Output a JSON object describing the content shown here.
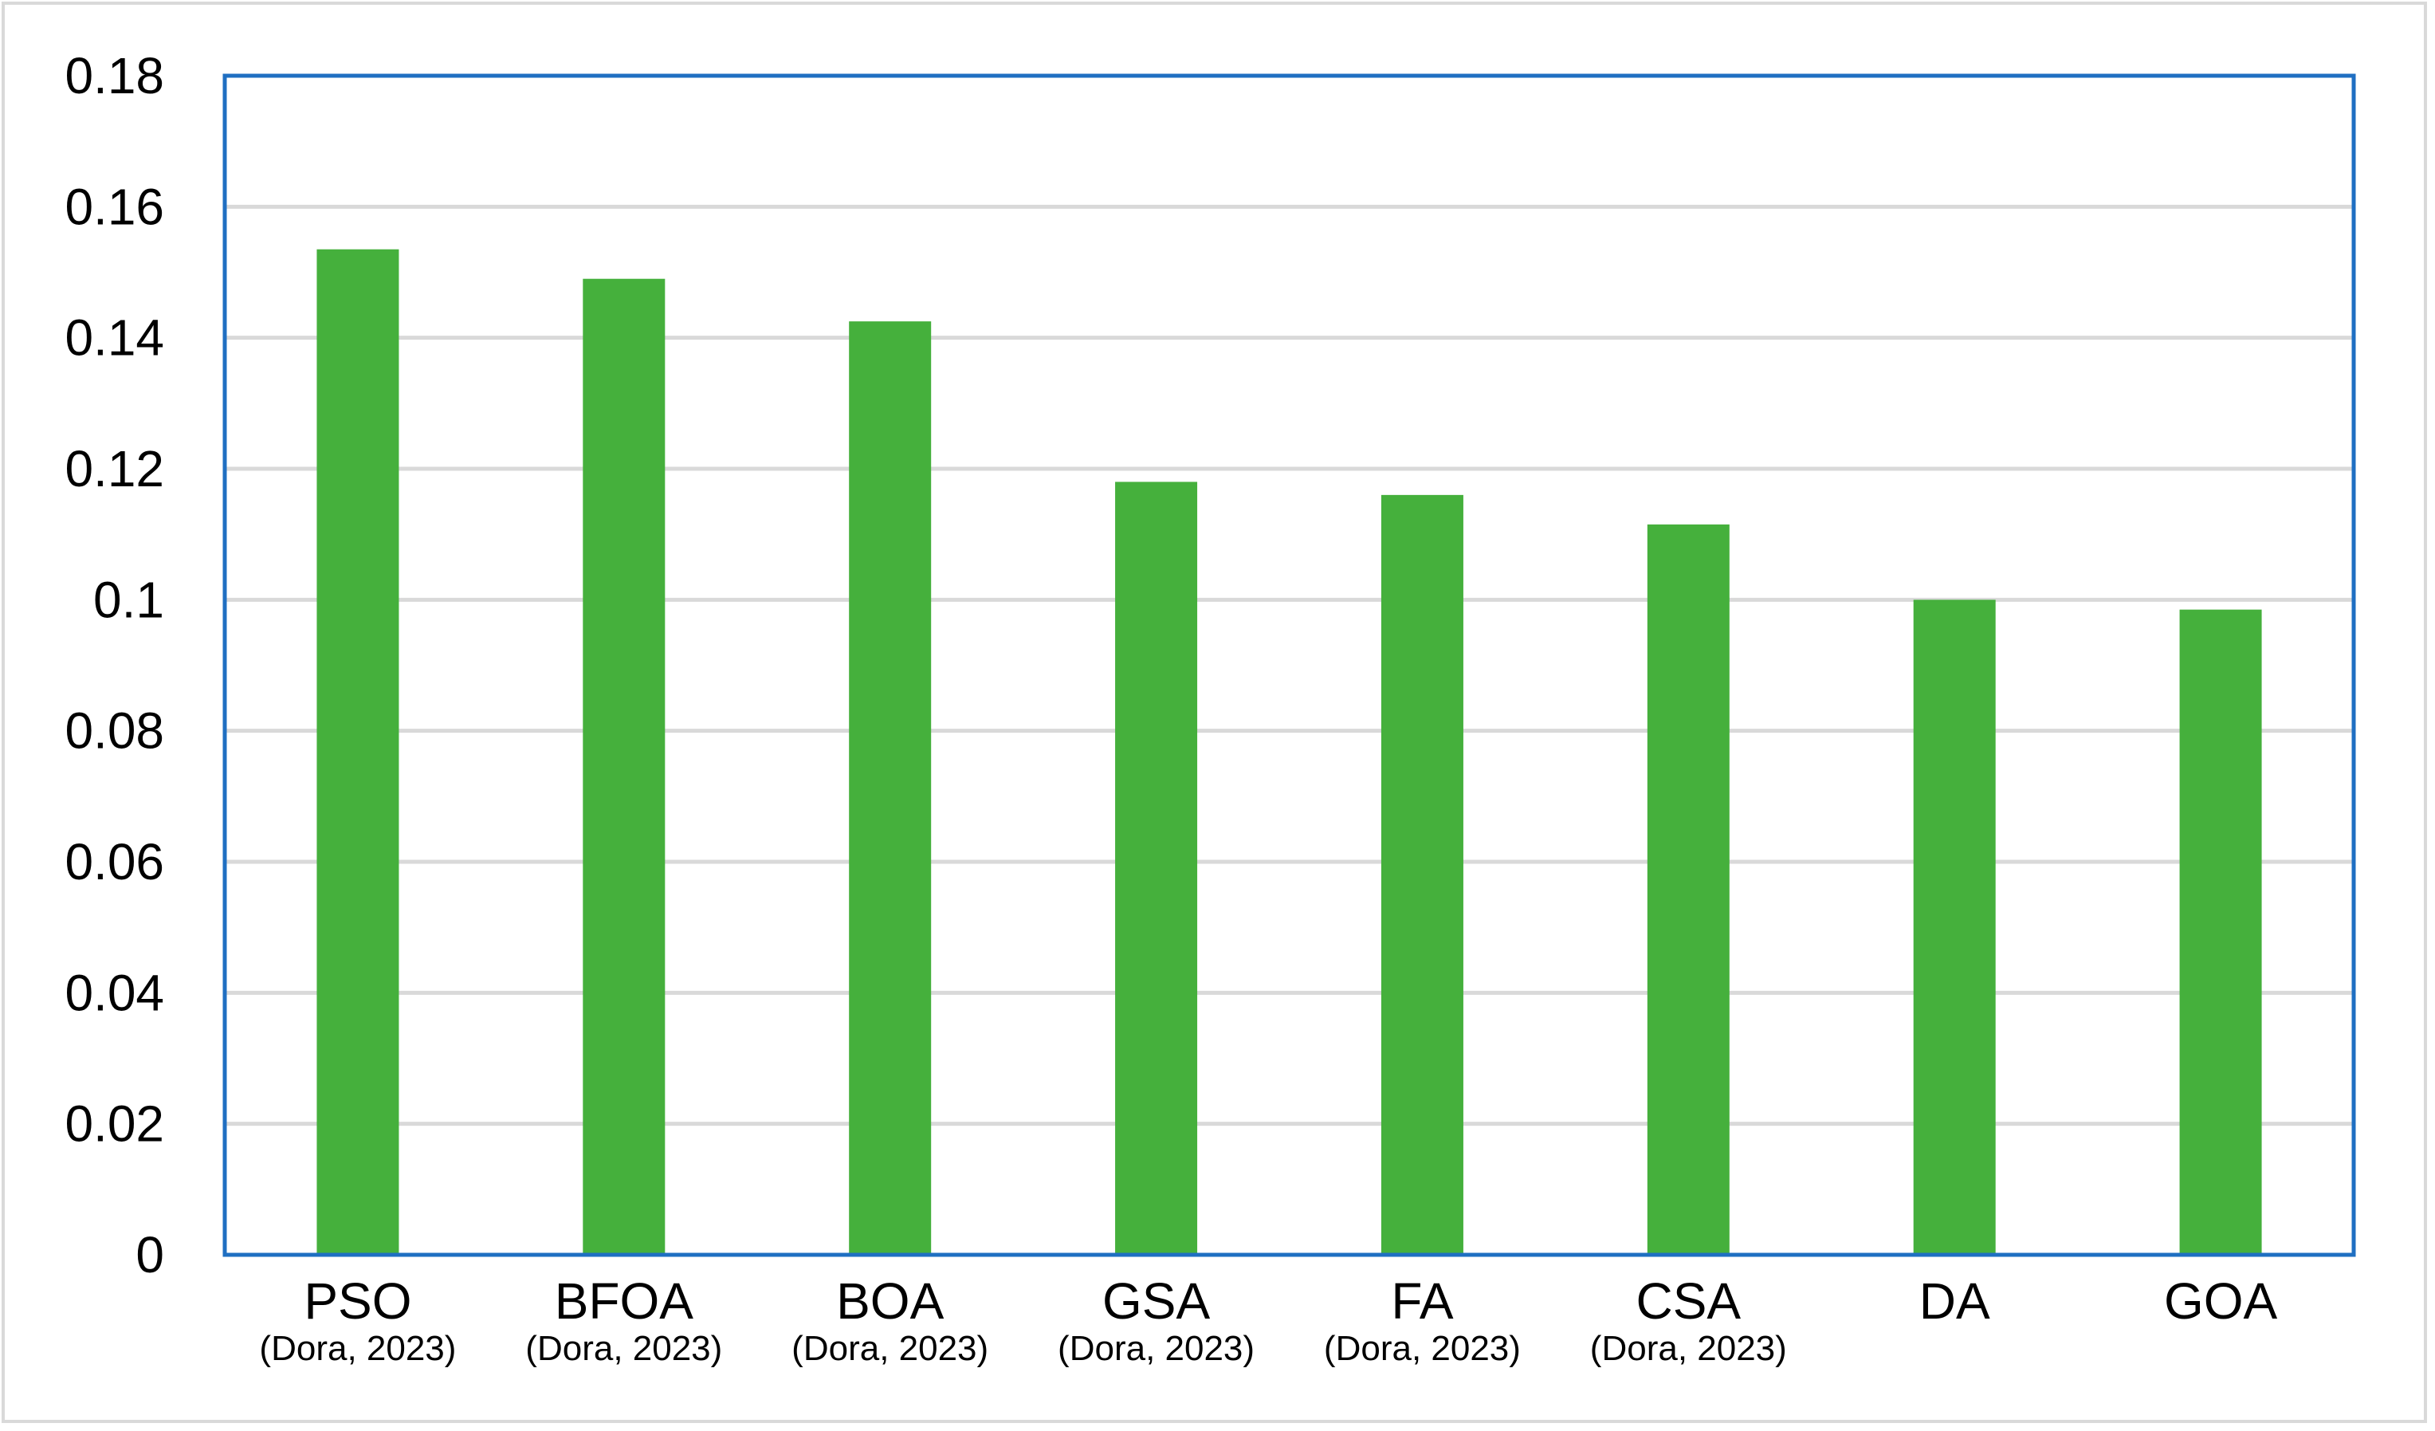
{
  "chart_data": {
    "type": "bar",
    "categories": [
      "PSO",
      "BFOA",
      "BOA",
      "GSA",
      "FA",
      "CSA",
      "DA",
      "GOA"
    ],
    "category_sublabels": [
      "(Dora, 2023)",
      "(Dora, 2023)",
      "(Dora, 2023)",
      "(Dora, 2023)",
      "(Dora, 2023)",
      "(Dora, 2023)",
      "",
      ""
    ],
    "values": [
      0.1535,
      0.149,
      0.1425,
      0.118,
      0.116,
      0.1115,
      0.1,
      0.0985
    ],
    "ylim": [
      0,
      0.18
    ],
    "yticks": [
      "0",
      "0.02",
      "0.04",
      "0.06",
      "0.08",
      "0.1",
      "0.12",
      "0.14",
      "0.16",
      "0.18"
    ],
    "title": "",
    "xlabel": "",
    "ylabel": "",
    "grid": true,
    "legend": "none",
    "colors": {
      "bar": "#45b03c",
      "plot_border": "#1f6fc2",
      "grid": "#d9d9d9",
      "frame": "#d9d9d9"
    }
  }
}
